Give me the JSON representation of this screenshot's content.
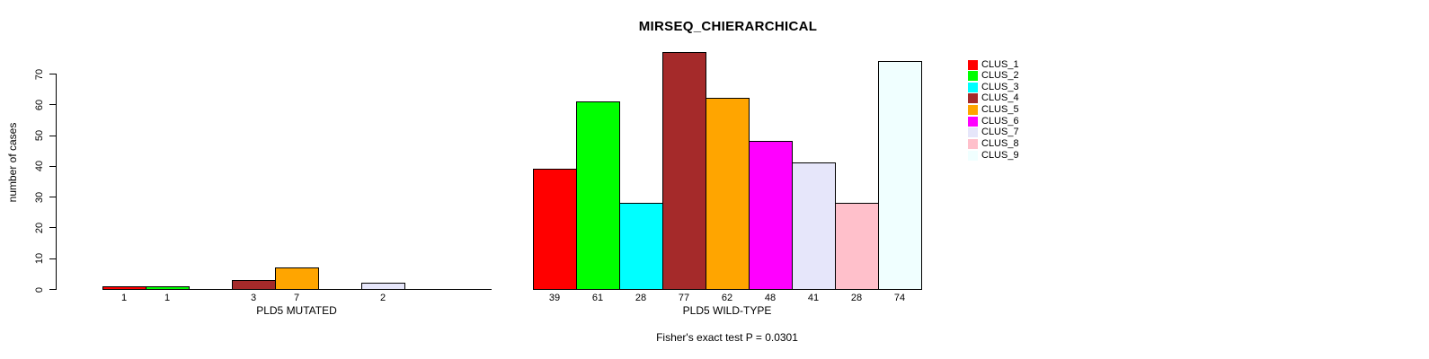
{
  "chart_data": {
    "type": "bar",
    "title": "MIRSEQ_CHIERARCHICAL",
    "ylabel": "number of cases",
    "ylim": [
      0,
      70
    ],
    "yticks": [
      0,
      10,
      20,
      30,
      40,
      50,
      60,
      70
    ],
    "grid": false,
    "legend_position": "right",
    "annotation": "Fisher's exact test P = 0.0301",
    "clusters": [
      {
        "name": "CLUS_1",
        "color": "#FF0000"
      },
      {
        "name": "CLUS_2",
        "color": "#00FF00"
      },
      {
        "name": "CLUS_3",
        "color": "#00FFFF"
      },
      {
        "name": "CLUS_4",
        "color": "#A52A2A"
      },
      {
        "name": "CLUS_5",
        "color": "#FFA500"
      },
      {
        "name": "CLUS_6",
        "color": "#FF00FF"
      },
      {
        "name": "CLUS_7",
        "color": "#E6E6FA"
      },
      {
        "name": "CLUS_8",
        "color": "#FFC0CB"
      },
      {
        "name": "CLUS_9",
        "color": "#F0FFFF"
      }
    ],
    "groups": [
      {
        "xlabel": "PLD5 MUTATED",
        "values": [
          1,
          1,
          0,
          3,
          7,
          0,
          2,
          0,
          0
        ]
      },
      {
        "xlabel": "PLD5 WILD-TYPE",
        "values": [
          39,
          61,
          28,
          77,
          62,
          48,
          41,
          28,
          74
        ]
      }
    ]
  }
}
